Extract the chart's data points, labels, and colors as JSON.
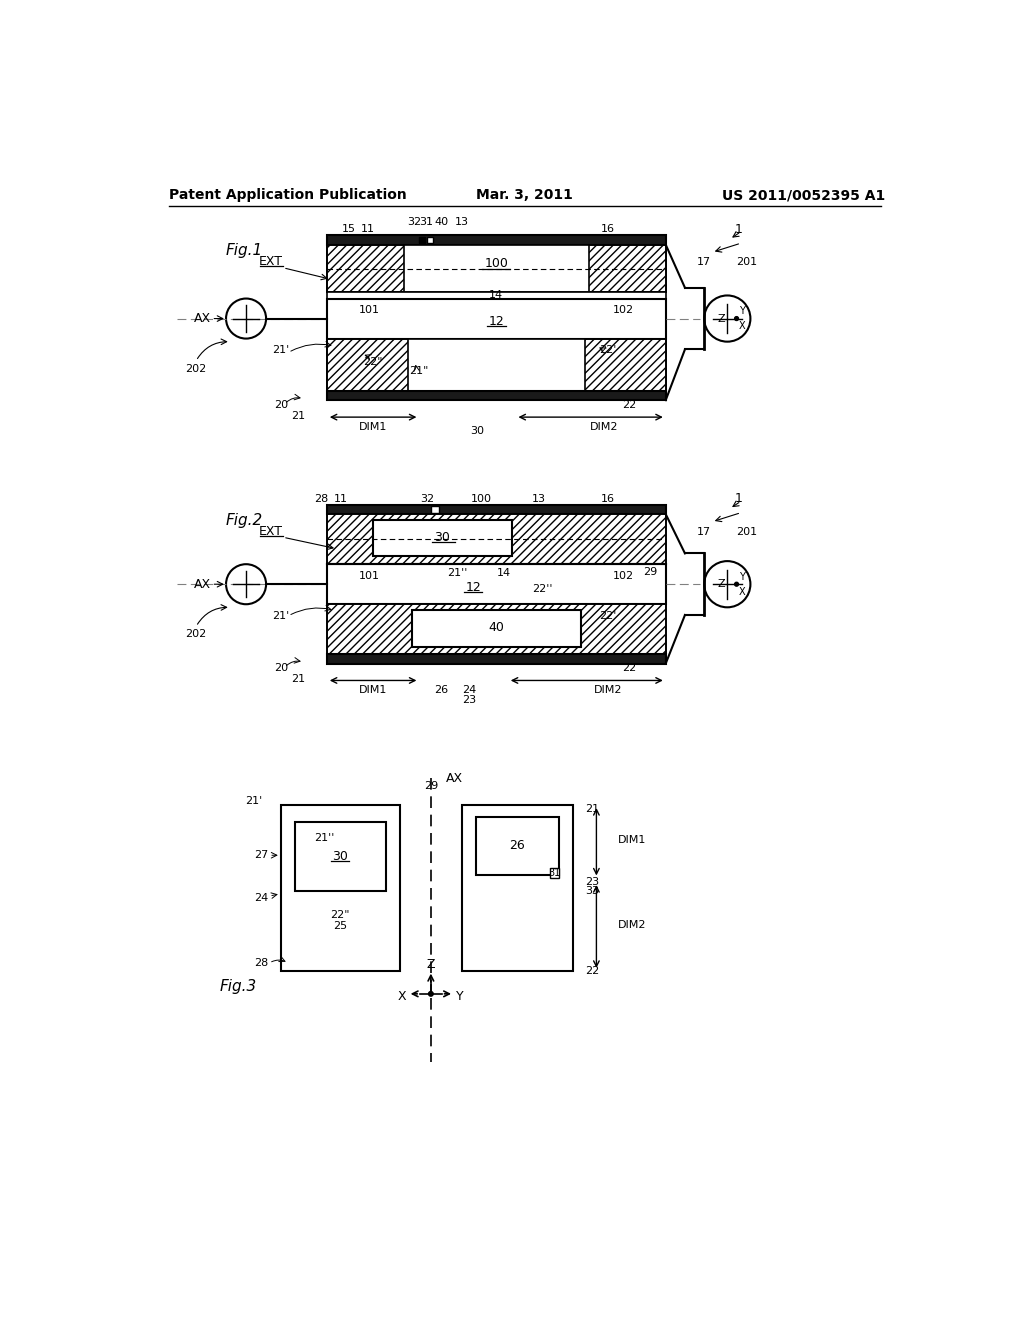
{
  "bg_color": "#ffffff",
  "header_left": "Patent Application Publication",
  "header_mid": "Mar. 3, 2011",
  "header_right": "US 2011/0052395 A1"
}
